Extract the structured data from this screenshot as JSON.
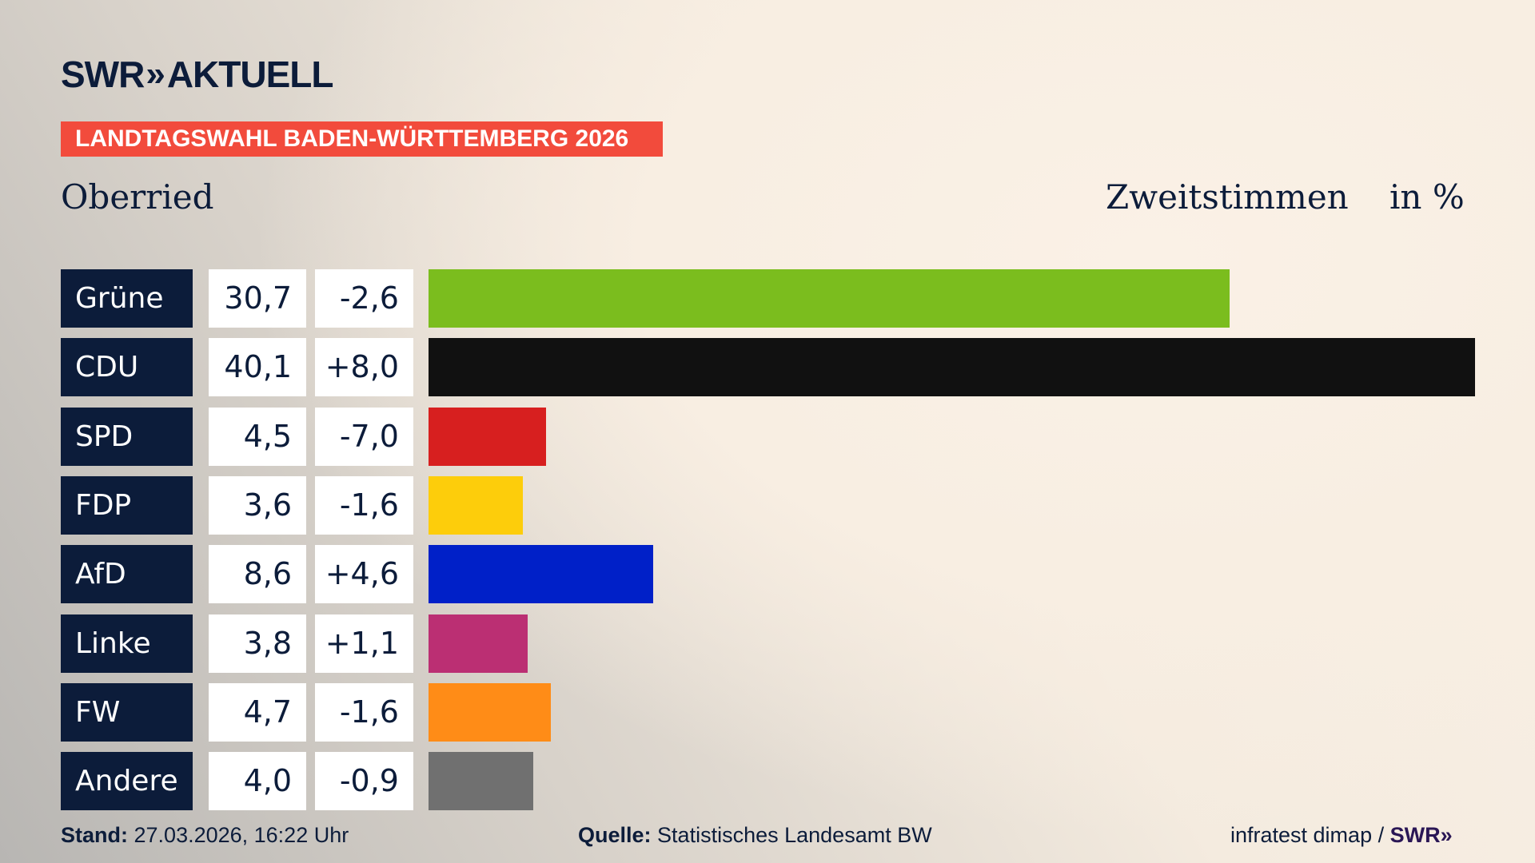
{
  "brand": {
    "logo_text": "SWR",
    "logo_suffix": "AKTUELL",
    "chevrons": "»"
  },
  "banner": "LANDTAGSWAHL BADEN-WÜRTTEMBERG 2026",
  "place": "Oberried",
  "header": {
    "vote_type": "Zweitstimmen",
    "unit": "in %"
  },
  "chart_data": {
    "type": "bar",
    "orientation": "horizontal",
    "categories": [
      "Grüne",
      "CDU",
      "SPD",
      "FDP",
      "AfD",
      "Linke",
      "FW",
      "Andere"
    ],
    "values": [
      30.7,
      40.1,
      4.5,
      3.6,
      8.6,
      3.8,
      4.7,
      4.0
    ],
    "value_labels": [
      "30,7",
      "40,1",
      "4,5",
      "3,6",
      "8,6",
      "3,8",
      "4,7",
      "4,0"
    ],
    "diff_labels": [
      "-2,6",
      "+8,0",
      "-7,0",
      "-1,6",
      "+4,6",
      "+1,1",
      "-1,6",
      "-0,9"
    ],
    "colors": [
      "#7bbd1e",
      "#111111",
      "#d71f1f",
      "#fdcd0b",
      "#0020c8",
      "#bb2f73",
      "#ff8c17",
      "#707070"
    ],
    "ylabel": "Zweitstimmen in %",
    "grid": false
  },
  "footer": {
    "stand_label": "Stand:",
    "stand_value": "27.03.2026, 16:22 Uhr",
    "source_label": "Quelle:",
    "source_value": "Statistisches Landesamt BW",
    "credit": "infratest dimap /",
    "credit_logo": "SWR»"
  }
}
